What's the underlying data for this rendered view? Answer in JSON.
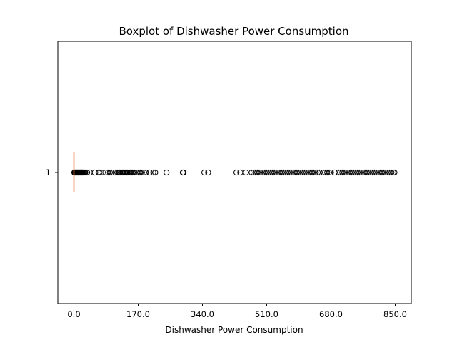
{
  "chart_data": {
    "type": "boxplot",
    "orientation": "horizontal",
    "title": "Boxplot of Dishwasher Power Consumption",
    "xlabel": "Dishwasher Power Consumption",
    "ylabel": "",
    "xlim": [
      -42.5,
      892.5
    ],
    "xticks": [
      0,
      170,
      340,
      510,
      680,
      850
    ],
    "xtick_labels": [
      "0.0",
      "170.0",
      "340.0",
      "510.0",
      "680.0",
      "850.0"
    ],
    "ytick_labels": [
      "1"
    ],
    "grid": false,
    "series": [
      {
        "category": "1",
        "box": {
          "whisker_low": 0,
          "q1": 0,
          "median": 0,
          "q3": 0,
          "whisker_high": 0
        },
        "fliers": [
          1,
          2,
          3,
          4,
          5,
          6,
          7,
          8,
          9,
          10,
          11,
          12,
          13,
          14,
          15,
          16,
          17,
          18,
          19,
          20,
          21,
          22,
          23,
          24,
          26,
          28,
          30,
          35,
          42,
          55,
          65,
          68,
          72,
          85,
          90,
          95,
          100,
          110,
          115,
          118,
          120,
          122,
          125,
          128,
          130,
          132,
          135,
          138,
          140,
          142,
          145,
          148,
          150,
          152,
          155,
          158,
          160,
          165,
          170,
          175,
          180,
          185,
          190,
          200,
          210,
          215,
          245,
          288,
          290,
          345,
          355,
          430,
          440,
          455,
          470,
          475,
          480,
          485,
          490,
          495,
          500,
          505,
          510,
          515,
          520,
          525,
          530,
          535,
          540,
          545,
          550,
          555,
          560,
          565,
          570,
          575,
          580,
          585,
          590,
          595,
          600,
          605,
          610,
          615,
          620,
          625,
          630,
          635,
          640,
          645,
          650,
          660,
          665,
          670,
          675,
          680,
          690,
          700,
          705,
          710,
          715,
          720,
          725,
          730,
          735,
          740,
          745,
          750,
          755,
          760,
          765,
          770,
          775,
          780,
          785,
          790,
          795,
          800,
          805,
          810,
          815,
          820,
          825,
          830,
          835,
          840,
          845,
          848
        ]
      }
    ],
    "colors": {
      "median": "#e07b39",
      "box": "#000000",
      "flier_edge": "#000000",
      "axes": "#000000",
      "background": "#ffffff"
    }
  }
}
